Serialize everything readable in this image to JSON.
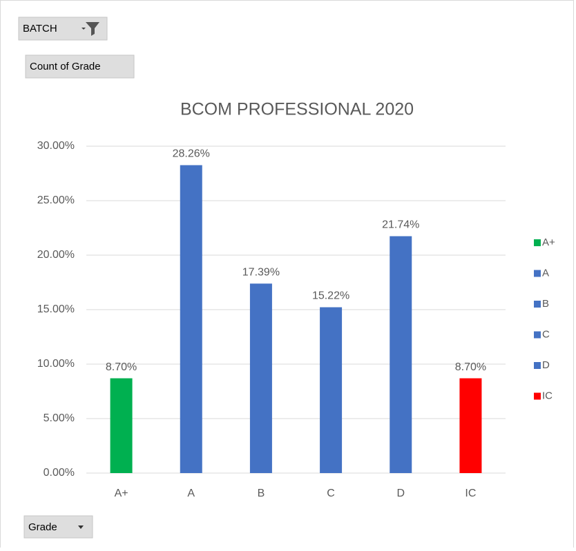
{
  "filter_button": "BATCH",
  "value_button": "Count of Grade",
  "axis_button": "Grade",
  "chart_data": {
    "type": "bar",
    "title": "BCOM PROFESSIONAL 2020",
    "categories": [
      "A+",
      "A",
      "B",
      "C",
      "D",
      "IC"
    ],
    "values": [
      8.7,
      28.26,
      17.39,
      15.22,
      21.74,
      8.7
    ],
    "value_labels": [
      "8.70%",
      "28.26%",
      "17.39%",
      "15.22%",
      "21.74%",
      "8.70%"
    ],
    "colors": [
      "#00b050",
      "#4472c4",
      "#4472c4",
      "#4472c4",
      "#4472c4",
      "#ff0000"
    ],
    "ylim": [
      0,
      30
    ],
    "yticks": [
      {
        "value": 0,
        "label": "0.00%"
      },
      {
        "value": 5,
        "label": "5.00%"
      },
      {
        "value": 10,
        "label": "10.00%"
      },
      {
        "value": 15,
        "label": "15.00%"
      },
      {
        "value": 20,
        "label": "20.00%"
      },
      {
        "value": 25,
        "label": "25.00%"
      },
      {
        "value": 30,
        "label": "30.00%"
      }
    ],
    "grid": true,
    "legend": "right"
  }
}
